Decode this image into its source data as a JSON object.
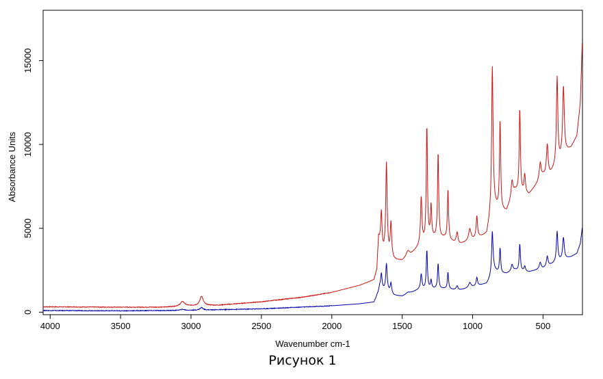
{
  "chart_data": {
    "type": "line",
    "title": "",
    "caption": "Рисунок 1",
    "xlabel": "Wavenumber cm-1",
    "ylabel": "Absorbance Units",
    "xlim": [
      4050,
      220
    ],
    "ylim": [
      -150,
      18000
    ],
    "xticks": [
      4000,
      3500,
      3000,
      2500,
      2000,
      1500,
      1000,
      500
    ],
    "xtick_labels": [
      "4000",
      "3500",
      "3000",
      "2500",
      "2000",
      "1500",
      "1000",
      "500"
    ],
    "yticks": [
      0,
      5000,
      10000,
      15000
    ],
    "ytick_labels": [
      "0",
      "5000",
      "10000",
      "15000"
    ],
    "grid": false,
    "series": [
      {
        "name": "spectrum-red",
        "color": "#cc1111",
        "baseline": [
          [
            4050,
            320
          ],
          [
            3500,
            300
          ],
          [
            3200,
            300
          ],
          [
            3000,
            380
          ],
          [
            2800,
            420
          ],
          [
            2500,
            620
          ],
          [
            2200,
            900
          ],
          [
            2000,
            1180
          ],
          [
            1800,
            1600
          ],
          [
            1700,
            1900
          ],
          [
            1680,
            2500
          ],
          [
            1668,
            4400
          ],
          [
            1640,
            3500
          ],
          [
            1600,
            3400
          ],
          [
            1560,
            3100
          ],
          [
            1500,
            3050
          ],
          [
            1440,
            3400
          ],
          [
            1380,
            3900
          ],
          [
            1300,
            4400
          ],
          [
            1200,
            4400
          ],
          [
            1100,
            4000
          ],
          [
            1000,
            4300
          ],
          [
            900,
            4600
          ],
          [
            880,
            5400
          ],
          [
            850,
            6300
          ],
          [
            800,
            6000
          ],
          [
            760,
            6000
          ],
          [
            700,
            7200
          ],
          [
            600,
            7000
          ],
          [
            500,
            8100
          ],
          [
            450,
            8200
          ],
          [
            380,
            9000
          ],
          [
            340,
            9500
          ],
          [
            300,
            9800
          ],
          [
            260,
            10500
          ],
          [
            235,
            12500
          ],
          [
            222,
            16000
          ]
        ],
        "peaks": [
          [
            3060,
            280,
            18
          ],
          [
            2925,
            560,
            14
          ],
          [
            1648,
            2200,
            6
          ],
          [
            1612,
            5400,
            6
          ],
          [
            1580,
            2000,
            6
          ],
          [
            1460,
            350,
            15
          ],
          [
            1365,
            2800,
            6
          ],
          [
            1325,
            6800,
            5
          ],
          [
            1295,
            1900,
            5
          ],
          [
            1245,
            5100,
            5
          ],
          [
            1175,
            3000,
            5
          ],
          [
            1110,
            700,
            8
          ],
          [
            1020,
            700,
            10
          ],
          [
            970,
            1300,
            6
          ],
          [
            860,
            8600,
            6
          ],
          [
            805,
            5400,
            5
          ],
          [
            720,
            1000,
            8
          ],
          [
            665,
            5000,
            5
          ],
          [
            630,
            1100,
            6
          ],
          [
            520,
            1000,
            8
          ],
          [
            470,
            1800,
            7
          ],
          [
            400,
            5200,
            6
          ],
          [
            355,
            4100,
            7
          ]
        ]
      },
      {
        "name": "spectrum-blue",
        "color": "#0000aa",
        "baseline": [
          [
            4050,
            100
          ],
          [
            3500,
            80
          ],
          [
            3000,
            110
          ],
          [
            2500,
            200
          ],
          [
            2000,
            380
          ],
          [
            1800,
            500
          ],
          [
            1700,
            600
          ],
          [
            1670,
            1200
          ],
          [
            1660,
            1500
          ],
          [
            1640,
            1350
          ],
          [
            1600,
            1250
          ],
          [
            1560,
            1000
          ],
          [
            1500,
            950
          ],
          [
            1440,
            1150
          ],
          [
            1380,
            1350
          ],
          [
            1300,
            1400
          ],
          [
            1200,
            1400
          ],
          [
            1100,
            1300
          ],
          [
            1000,
            1500
          ],
          [
            900,
            1700
          ],
          [
            870,
            2100
          ],
          [
            850,
            2500
          ],
          [
            800,
            2300
          ],
          [
            760,
            2300
          ],
          [
            700,
            2500
          ],
          [
            600,
            2400
          ],
          [
            500,
            2600
          ],
          [
            400,
            3000
          ],
          [
            300,
            3300
          ],
          [
            260,
            3500
          ],
          [
            235,
            4100
          ],
          [
            222,
            5000
          ]
        ],
        "peaks": [
          [
            3060,
            60,
            18
          ],
          [
            2925,
            150,
            14
          ],
          [
            1648,
            900,
            6
          ],
          [
            1612,
            1600,
            6
          ],
          [
            1580,
            600,
            6
          ],
          [
            1460,
            100,
            15
          ],
          [
            1365,
            900,
            6
          ],
          [
            1325,
            2300,
            5
          ],
          [
            1295,
            500,
            5
          ],
          [
            1245,
            1500,
            5
          ],
          [
            1175,
            1000,
            5
          ],
          [
            1110,
            250,
            8
          ],
          [
            1020,
            300,
            10
          ],
          [
            970,
            500,
            6
          ],
          [
            860,
            2500,
            6
          ],
          [
            805,
            1500,
            5
          ],
          [
            720,
            400,
            8
          ],
          [
            665,
            1600,
            5
          ],
          [
            630,
            300,
            6
          ],
          [
            520,
            400,
            8
          ],
          [
            470,
            600,
            7
          ],
          [
            400,
            1800,
            6
          ],
          [
            355,
            1300,
            7
          ]
        ]
      }
    ]
  }
}
